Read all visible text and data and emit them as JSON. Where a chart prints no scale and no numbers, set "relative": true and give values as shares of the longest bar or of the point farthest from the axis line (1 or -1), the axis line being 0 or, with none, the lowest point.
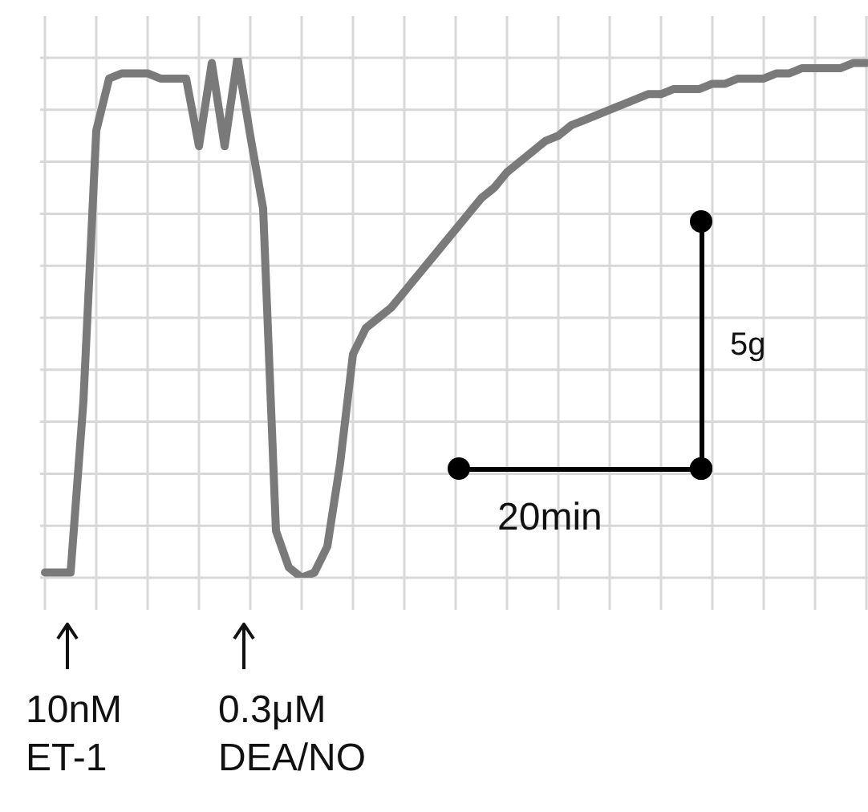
{
  "chart_data": {
    "type": "line",
    "relative": true,
    "grid": true,
    "tick_labels": false,
    "marker": "none",
    "categories": [
      null,
      null,
      null,
      null,
      null,
      null,
      null,
      null,
      null,
      null,
      null,
      null,
      null,
      null,
      null,
      null,
      null,
      null,
      null,
      null,
      null,
      null,
      null,
      null,
      null,
      null,
      null,
      null,
      null,
      null,
      null,
      null,
      null,
      null,
      null,
      null,
      null,
      null,
      null,
      null,
      null,
      null,
      null,
      null,
      null,
      null,
      null,
      null,
      null,
      null,
      null,
      null,
      null,
      null,
      null,
      null,
      null,
      null,
      null,
      null,
      null,
      null,
      null,
      null,
      null
    ],
    "series": [
      {
        "color": "#7a7a7a",
        "values": [
          0.01,
          0.01,
          0.01,
          0.34,
          0.86,
          0.96,
          0.97,
          0.97,
          0.97,
          0.96,
          0.96,
          0.96,
          0.83,
          0.99,
          0.83,
          1,
          0.85,
          0.71,
          0.09,
          0.02,
          0,
          0.01,
          0.06,
          0.22,
          0.43,
          0.48,
          0.5,
          0.52,
          0.55,
          0.58,
          0.61,
          0.64,
          0.67,
          0.7,
          0.73,
          0.75,
          0.78,
          0.8,
          0.82,
          0.84,
          0.85,
          0.87,
          0.88,
          0.89,
          0.9,
          0.91,
          0.92,
          0.93,
          0.93,
          0.94,
          0.94,
          0.94,
          0.95,
          0.95,
          0.96,
          0.96,
          0.96,
          0.97,
          0.97,
          0.98,
          0.98,
          0.98,
          0.98,
          0.99,
          0.99
        ]
      }
    ],
    "annotations": [
      "10nM ET-1",
      "0.3μM DEA/NO",
      "5g",
      "20min"
    ]
  }
}
